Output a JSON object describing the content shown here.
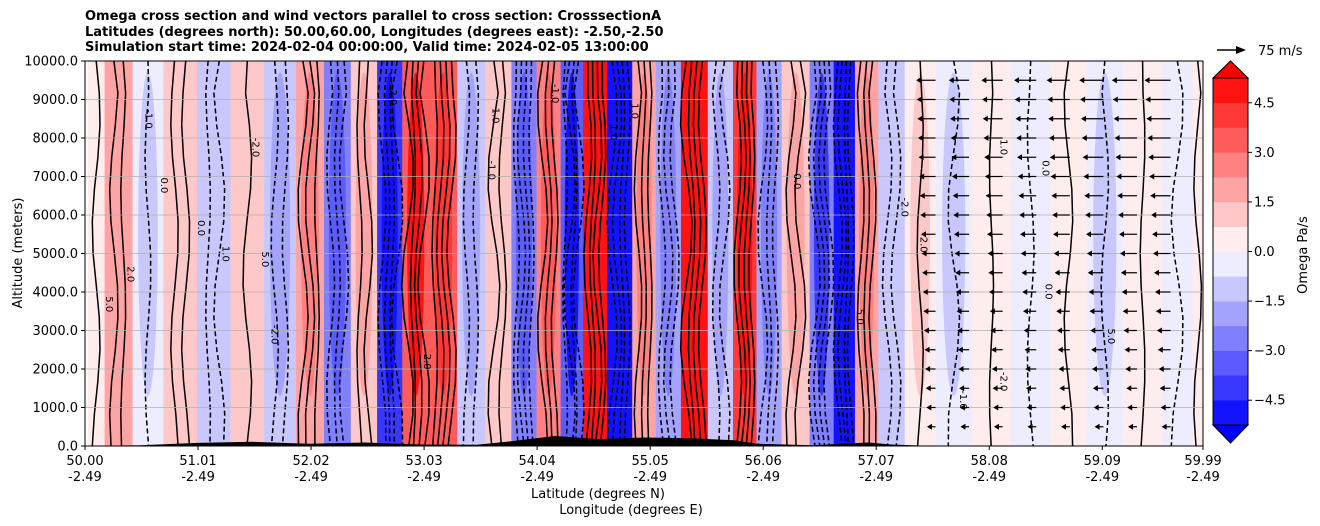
{
  "chart_data": {
    "type": "heatmap",
    "title_lines": [
      "Omega cross section and wind vectors parallel to cross section: CrosssectionA",
      "Latitudes (degrees north): 50.00,60.00, Longitudes (degrees east): -2.50,-2.50",
      "Simulation start time: 2024-02-04 00:00:00, Valid time: 2024-02-05 13:00:00"
    ],
    "ylabel": "Altitude (meters)",
    "xlabel_line1": "Latitude (degrees N)",
    "xlabel_line2": "Longitude (degrees E)",
    "ylim": [
      0,
      10000
    ],
    "xlim": [
      50.0,
      59.99
    ],
    "y_ticks": [
      "0.0",
      "1000.0",
      "2000.0",
      "3000.0",
      "4000.0",
      "5000.0",
      "6000.0",
      "7000.0",
      "8000.0",
      "9000.0",
      "10000.0"
    ],
    "x_ticks": [
      {
        "lat": "50.00",
        "lon": "-2.49"
      },
      {
        "lat": "51.01",
        "lon": "-2.49"
      },
      {
        "lat": "52.02",
        "lon": "-2.49"
      },
      {
        "lat": "53.03",
        "lon": "-2.49"
      },
      {
        "lat": "54.04",
        "lon": "-2.49"
      },
      {
        "lat": "55.05",
        "lon": "-2.49"
      },
      {
        "lat": "56.06",
        "lon": "-2.49"
      },
      {
        "lat": "57.07",
        "lon": "-2.49"
      },
      {
        "lat": "58.08",
        "lon": "-2.49"
      },
      {
        "lat": "59.09",
        "lon": "-2.49"
      },
      {
        "lat": "59.99",
        "lon": "-2.49"
      }
    ],
    "grid": "horizontal",
    "colorbar": {
      "label": "Omega Pa/s",
      "range": [
        -5.25,
        5.25
      ],
      "ticks": [
        "4.5",
        "3.0",
        "1.5",
        "0.0",
        "−1.5",
        "−3.0",
        "−4.5"
      ],
      "tick_values": [
        4.5,
        3.0,
        1.5,
        0.0,
        -1.5,
        -3.0,
        -4.5
      ],
      "extend": "both",
      "cmap": "bwr"
    },
    "quiver_key": {
      "label": "75 m/s",
      "value": 75
    },
    "omega_bands": [
      {
        "lat": 50.05,
        "value": 0.3
      },
      {
        "lat": 50.3,
        "value": 1.5
      },
      {
        "lat": 50.55,
        "value": -0.6
      },
      {
        "lat": 50.85,
        "value": 0.9
      },
      {
        "lat": 51.15,
        "value": -0.9
      },
      {
        "lat": 51.45,
        "value": 0.8
      },
      {
        "lat": 51.75,
        "value": -1.2
      },
      {
        "lat": 52.02,
        "value": 1.8
      },
      {
        "lat": 52.25,
        "value": -2.4
      },
      {
        "lat": 52.5,
        "value": 1.2
      },
      {
        "lat": 52.72,
        "value": -4.2
      },
      {
        "lat": 52.95,
        "value": 3.6
      },
      {
        "lat": 53.2,
        "value": 3.3
      },
      {
        "lat": 53.45,
        "value": -1.5
      },
      {
        "lat": 53.7,
        "value": 1.0
      },
      {
        "lat": 53.92,
        "value": -2.7
      },
      {
        "lat": 54.15,
        "value": 2.4
      },
      {
        "lat": 54.35,
        "value": -3.6
      },
      {
        "lat": 54.55,
        "value": 5.2
      },
      {
        "lat": 54.78,
        "value": -5.2
      },
      {
        "lat": 55.0,
        "value": 2.0
      },
      {
        "lat": 55.2,
        "value": -2.1
      },
      {
        "lat": 55.45,
        "value": 5.2
      },
      {
        "lat": 55.68,
        "value": -1.4
      },
      {
        "lat": 55.9,
        "value": 4.2
      },
      {
        "lat": 56.1,
        "value": -1.8
      },
      {
        "lat": 56.35,
        "value": 1.2
      },
      {
        "lat": 56.6,
        "value": -3.0
      },
      {
        "lat": 56.78,
        "value": -5.2
      },
      {
        "lat": 56.98,
        "value": 2.2
      },
      {
        "lat": 57.2,
        "value": -0.9
      },
      {
        "lat": 57.45,
        "value": 0.6
      },
      {
        "lat": 57.75,
        "value": -0.6
      },
      {
        "lat": 58.1,
        "value": 0.3
      },
      {
        "lat": 58.45,
        "value": -0.5
      },
      {
        "lat": 58.8,
        "value": 0.4
      },
      {
        "lat": 59.1,
        "value": -0.6
      },
      {
        "lat": 59.45,
        "value": 0.5
      },
      {
        "lat": 59.8,
        "value": -0.4
      },
      {
        "lat": 59.99,
        "value": 0.3
      }
    ],
    "contour_labels": [
      "0.0",
      "1.0",
      "-1.0",
      "2.0",
      "-2.0",
      "5.0"
    ]
  }
}
